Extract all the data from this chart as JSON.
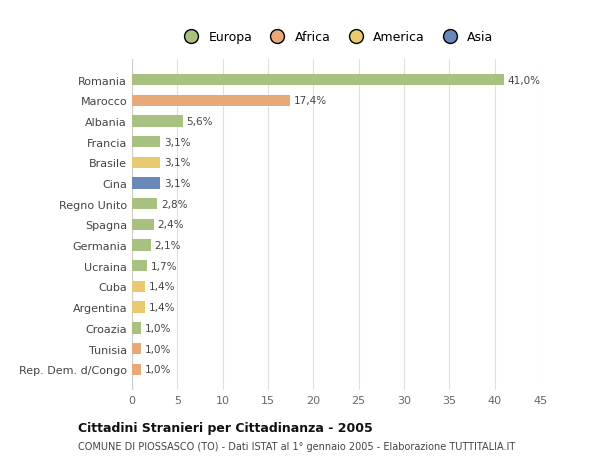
{
  "countries": [
    "Romania",
    "Marocco",
    "Albania",
    "Francia",
    "Brasile",
    "Cina",
    "Regno Unito",
    "Spagna",
    "Germania",
    "Ucraina",
    "Cuba",
    "Argentina",
    "Croazia",
    "Tunisia",
    "Rep. Dem. d/Congo"
  ],
  "values": [
    41.0,
    17.4,
    5.6,
    3.1,
    3.1,
    3.1,
    2.8,
    2.4,
    2.1,
    1.7,
    1.4,
    1.4,
    1.0,
    1.0,
    1.0
  ],
  "labels": [
    "41,0%",
    "17,4%",
    "5,6%",
    "3,1%",
    "3,1%",
    "3,1%",
    "2,8%",
    "2,4%",
    "2,1%",
    "1,7%",
    "1,4%",
    "1,4%",
    "1,0%",
    "1,0%",
    "1,0%"
  ],
  "colors": [
    "#a8c080",
    "#e8a878",
    "#a8c080",
    "#a8c080",
    "#e8c870",
    "#6888b8",
    "#a8c080",
    "#a8c080",
    "#a8c080",
    "#a8c080",
    "#e8c870",
    "#e8c870",
    "#a8c080",
    "#e8a878",
    "#e8a878"
  ],
  "legend_labels": [
    "Europa",
    "Africa",
    "America",
    "Asia"
  ],
  "legend_colors": [
    "#a8c080",
    "#e8a878",
    "#e8c870",
    "#6888b8"
  ],
  "title": "Cittadini Stranieri per Cittadinanza - 2005",
  "subtitle": "COMUNE DI PIOSSASCO (TO) - Dati ISTAT al 1° gennaio 2005 - Elaborazione TUTTITALIA.IT",
  "xlim": [
    0,
    45
  ],
  "xticks": [
    0,
    5,
    10,
    15,
    20,
    25,
    30,
    35,
    40,
    45
  ],
  "bg_color": "#ffffff",
  "grid_color": "#e0e0e0",
  "bar_height": 0.55
}
